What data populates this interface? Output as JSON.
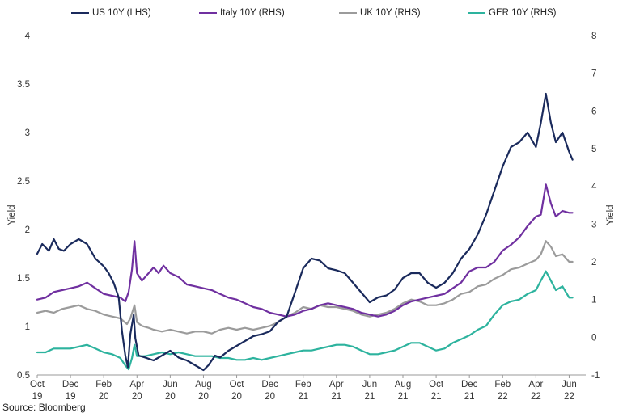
{
  "chart_data": {
    "type": "line",
    "title": "",
    "source": "Source: Bloomberg",
    "ylabel_left": "Yield",
    "ylabel_right": "Yield",
    "ylim_left": [
      0.5,
      4
    ],
    "ylim_right": [
      -1,
      8
    ],
    "yticks_left": [
      "0.5",
      "1",
      "1.5",
      "2",
      "2.5",
      "3",
      "3.5",
      "4"
    ],
    "yticks_right": [
      "-1",
      "0",
      "1",
      "2",
      "3",
      "4",
      "5",
      "6",
      "7",
      "8"
    ],
    "x_ticks": [
      {
        "month": "Oct",
        "year": "19"
      },
      {
        "month": "Dec",
        "year": "19"
      },
      {
        "month": "Feb",
        "year": "20"
      },
      {
        "month": "Apr",
        "year": "20"
      },
      {
        "month": "Jun",
        "year": "20"
      },
      {
        "month": "Aug",
        "year": "20"
      },
      {
        "month": "Oct",
        "year": "20"
      },
      {
        "month": "Dec",
        "year": "20"
      },
      {
        "month": "Feb",
        "year": "21"
      },
      {
        "month": "Apr",
        "year": "21"
      },
      {
        "month": "Jun",
        "year": "21"
      },
      {
        "month": "Aug",
        "year": "21"
      },
      {
        "month": "Oct",
        "year": "21"
      },
      {
        "month": "Dec",
        "year": "21"
      },
      {
        "month": "Feb",
        "year": "22"
      },
      {
        "month": "Apr",
        "year": "22"
      },
      {
        "month": "Jun",
        "year": "22"
      }
    ],
    "x_range_months": [
      0,
      33
    ],
    "series": [
      {
        "name": "US 10Y (LHS)",
        "axis": "left",
        "color": "#1a2a5c",
        "points": [
          [
            0,
            1.75
          ],
          [
            0.3,
            1.85
          ],
          [
            0.7,
            1.78
          ],
          [
            1.0,
            1.9
          ],
          [
            1.3,
            1.8
          ],
          [
            1.6,
            1.78
          ],
          [
            2.0,
            1.85
          ],
          [
            2.5,
            1.9
          ],
          [
            3.0,
            1.85
          ],
          [
            3.5,
            1.7
          ],
          [
            4.0,
            1.62
          ],
          [
            4.3,
            1.55
          ],
          [
            4.6,
            1.45
          ],
          [
            4.9,
            1.3
          ],
          [
            5.1,
            0.95
          ],
          [
            5.3,
            0.7
          ],
          [
            5.45,
            0.58
          ],
          [
            5.6,
            0.92
          ],
          [
            5.8,
            1.12
          ],
          [
            5.9,
            0.88
          ],
          [
            6.1,
            0.7
          ],
          [
            6.5,
            0.68
          ],
          [
            7.0,
            0.65
          ],
          [
            7.5,
            0.7
          ],
          [
            8.0,
            0.75
          ],
          [
            8.5,
            0.68
          ],
          [
            9.0,
            0.65
          ],
          [
            9.5,
            0.6
          ],
          [
            10.0,
            0.55
          ],
          [
            10.3,
            0.6
          ],
          [
            10.7,
            0.7
          ],
          [
            11.0,
            0.68
          ],
          [
            11.5,
            0.75
          ],
          [
            12.0,
            0.8
          ],
          [
            12.5,
            0.85
          ],
          [
            13.0,
            0.9
          ],
          [
            13.5,
            0.92
          ],
          [
            14.0,
            0.95
          ],
          [
            14.5,
            1.05
          ],
          [
            15.0,
            1.1
          ],
          [
            15.5,
            1.35
          ],
          [
            16.0,
            1.6
          ],
          [
            16.5,
            1.7
          ],
          [
            17.0,
            1.68
          ],
          [
            17.5,
            1.6
          ],
          [
            18.0,
            1.58
          ],
          [
            18.5,
            1.55
          ],
          [
            19.0,
            1.45
          ],
          [
            19.5,
            1.35
          ],
          [
            20.0,
            1.25
          ],
          [
            20.5,
            1.3
          ],
          [
            21.0,
            1.32
          ],
          [
            21.5,
            1.38
          ],
          [
            22.0,
            1.5
          ],
          [
            22.5,
            1.55
          ],
          [
            23.0,
            1.55
          ],
          [
            23.5,
            1.45
          ],
          [
            24.0,
            1.4
          ],
          [
            24.5,
            1.45
          ],
          [
            25.0,
            1.55
          ],
          [
            25.5,
            1.7
          ],
          [
            26.0,
            1.8
          ],
          [
            26.5,
            1.95
          ],
          [
            27.0,
            2.15
          ],
          [
            27.5,
            2.4
          ],
          [
            28.0,
            2.65
          ],
          [
            28.5,
            2.85
          ],
          [
            29.0,
            2.9
          ],
          [
            29.5,
            3.0
          ],
          [
            30.0,
            2.85
          ],
          [
            30.3,
            3.1
          ],
          [
            30.6,
            3.4
          ],
          [
            30.9,
            3.1
          ],
          [
            31.2,
            2.9
          ],
          [
            31.6,
            3.0
          ],
          [
            32.0,
            2.8
          ],
          [
            32.2,
            2.72
          ]
        ]
      },
      {
        "name": "Italy 10Y (RHS)",
        "axis": "right",
        "color": "#7030a0",
        "points": [
          [
            0,
            1.0
          ],
          [
            0.5,
            1.05
          ],
          [
            1.0,
            1.2
          ],
          [
            1.5,
            1.25
          ],
          [
            2.0,
            1.3
          ],
          [
            2.5,
            1.35
          ],
          [
            3.0,
            1.45
          ],
          [
            3.5,
            1.3
          ],
          [
            4.0,
            1.15
          ],
          [
            4.5,
            1.1
          ],
          [
            5.0,
            1.05
          ],
          [
            5.3,
            0.95
          ],
          [
            5.5,
            1.2
          ],
          [
            5.7,
            1.8
          ],
          [
            5.85,
            2.55
          ],
          [
            6.0,
            1.7
          ],
          [
            6.3,
            1.5
          ],
          [
            6.7,
            1.7
          ],
          [
            7.0,
            1.85
          ],
          [
            7.3,
            1.7
          ],
          [
            7.6,
            1.9
          ],
          [
            8.0,
            1.7
          ],
          [
            8.5,
            1.6
          ],
          [
            9.0,
            1.4
          ],
          [
            9.5,
            1.35
          ],
          [
            10.0,
            1.3
          ],
          [
            10.5,
            1.25
          ],
          [
            11.0,
            1.15
          ],
          [
            11.5,
            1.05
          ],
          [
            12.0,
            1.0
          ],
          [
            12.5,
            0.9
          ],
          [
            13.0,
            0.8
          ],
          [
            13.5,
            0.75
          ],
          [
            14.0,
            0.65
          ],
          [
            14.5,
            0.6
          ],
          [
            15.0,
            0.55
          ],
          [
            15.5,
            0.6
          ],
          [
            16.0,
            0.7
          ],
          [
            16.5,
            0.75
          ],
          [
            17.0,
            0.85
          ],
          [
            17.5,
            0.9
          ],
          [
            18.0,
            0.85
          ],
          [
            18.5,
            0.8
          ],
          [
            19.0,
            0.75
          ],
          [
            19.5,
            0.65
          ],
          [
            20.0,
            0.6
          ],
          [
            20.5,
            0.55
          ],
          [
            21.0,
            0.6
          ],
          [
            21.5,
            0.7
          ],
          [
            22.0,
            0.85
          ],
          [
            22.5,
            0.95
          ],
          [
            23.0,
            1.0
          ],
          [
            23.5,
            1.05
          ],
          [
            24.0,
            1.1
          ],
          [
            24.5,
            1.15
          ],
          [
            25.0,
            1.3
          ],
          [
            25.5,
            1.45
          ],
          [
            26.0,
            1.75
          ],
          [
            26.5,
            1.85
          ],
          [
            27.0,
            1.85
          ],
          [
            27.5,
            2.0
          ],
          [
            28.0,
            2.3
          ],
          [
            28.5,
            2.45
          ],
          [
            29.0,
            2.65
          ],
          [
            29.5,
            2.95
          ],
          [
            30.0,
            3.2
          ],
          [
            30.3,
            3.25
          ],
          [
            30.6,
            4.05
          ],
          [
            30.9,
            3.55
          ],
          [
            31.2,
            3.2
          ],
          [
            31.6,
            3.35
          ],
          [
            32.0,
            3.3
          ],
          [
            32.2,
            3.3
          ]
        ]
      },
      {
        "name": "UK 10Y (RHS)",
        "axis": "right",
        "color": "#9b9b9b",
        "points": [
          [
            0,
            0.65
          ],
          [
            0.5,
            0.7
          ],
          [
            1.0,
            0.65
          ],
          [
            1.5,
            0.75
          ],
          [
            2.0,
            0.8
          ],
          [
            2.5,
            0.85
          ],
          [
            3.0,
            0.75
          ],
          [
            3.5,
            0.7
          ],
          [
            4.0,
            0.6
          ],
          [
            4.5,
            0.55
          ],
          [
            5.0,
            0.5
          ],
          [
            5.4,
            0.35
          ],
          [
            5.6,
            0.5
          ],
          [
            5.85,
            0.85
          ],
          [
            6.0,
            0.4
          ],
          [
            6.3,
            0.3
          ],
          [
            6.7,
            0.25
          ],
          [
            7.0,
            0.2
          ],
          [
            7.5,
            0.15
          ],
          [
            8.0,
            0.2
          ],
          [
            8.5,
            0.15
          ],
          [
            9.0,
            0.1
          ],
          [
            9.5,
            0.15
          ],
          [
            10.0,
            0.15
          ],
          [
            10.5,
            0.1
          ],
          [
            11.0,
            0.2
          ],
          [
            11.5,
            0.25
          ],
          [
            12.0,
            0.2
          ],
          [
            12.5,
            0.25
          ],
          [
            13.0,
            0.2
          ],
          [
            13.5,
            0.25
          ],
          [
            14.0,
            0.3
          ],
          [
            14.5,
            0.4
          ],
          [
            15.0,
            0.55
          ],
          [
            15.5,
            0.65
          ],
          [
            16.0,
            0.8
          ],
          [
            16.5,
            0.75
          ],
          [
            17.0,
            0.85
          ],
          [
            17.5,
            0.8
          ],
          [
            18.0,
            0.8
          ],
          [
            18.5,
            0.75
          ],
          [
            19.0,
            0.7
          ],
          [
            19.5,
            0.6
          ],
          [
            20.0,
            0.55
          ],
          [
            20.5,
            0.6
          ],
          [
            21.0,
            0.65
          ],
          [
            21.5,
            0.75
          ],
          [
            22.0,
            0.9
          ],
          [
            22.5,
            1.0
          ],
          [
            23.0,
            0.95
          ],
          [
            23.5,
            0.85
          ],
          [
            24.0,
            0.85
          ],
          [
            24.5,
            0.9
          ],
          [
            25.0,
            1.0
          ],
          [
            25.5,
            1.15
          ],
          [
            26.0,
            1.2
          ],
          [
            26.5,
            1.35
          ],
          [
            27.0,
            1.4
          ],
          [
            27.5,
            1.55
          ],
          [
            28.0,
            1.65
          ],
          [
            28.5,
            1.8
          ],
          [
            29.0,
            1.85
          ],
          [
            29.5,
            1.95
          ],
          [
            30.0,
            2.05
          ],
          [
            30.3,
            2.2
          ],
          [
            30.6,
            2.55
          ],
          [
            30.9,
            2.4
          ],
          [
            31.2,
            2.15
          ],
          [
            31.6,
            2.2
          ],
          [
            32.0,
            2.0
          ],
          [
            32.2,
            2.0
          ]
        ]
      },
      {
        "name": "GER 10Y (RHS)",
        "axis": "right",
        "color": "#2db39e",
        "points": [
          [
            0,
            -0.4
          ],
          [
            0.5,
            -0.4
          ],
          [
            1.0,
            -0.3
          ],
          [
            1.5,
            -0.3
          ],
          [
            2.0,
            -0.3
          ],
          [
            2.5,
            -0.25
          ],
          [
            3.0,
            -0.2
          ],
          [
            3.5,
            -0.3
          ],
          [
            4.0,
            -0.4
          ],
          [
            4.5,
            -0.45
          ],
          [
            5.0,
            -0.55
          ],
          [
            5.3,
            -0.75
          ],
          [
            5.5,
            -0.85
          ],
          [
            5.7,
            -0.55
          ],
          [
            5.85,
            -0.2
          ],
          [
            6.0,
            -0.5
          ],
          [
            6.5,
            -0.5
          ],
          [
            7.0,
            -0.45
          ],
          [
            7.5,
            -0.4
          ],
          [
            8.0,
            -0.45
          ],
          [
            8.5,
            -0.4
          ],
          [
            9.0,
            -0.45
          ],
          [
            9.5,
            -0.5
          ],
          [
            10.0,
            -0.5
          ],
          [
            10.5,
            -0.5
          ],
          [
            11.0,
            -0.55
          ],
          [
            11.5,
            -0.55
          ],
          [
            12.0,
            -0.6
          ],
          [
            12.5,
            -0.6
          ],
          [
            13.0,
            -0.55
          ],
          [
            13.5,
            -0.6
          ],
          [
            14.0,
            -0.55
          ],
          [
            14.5,
            -0.5
          ],
          [
            15.0,
            -0.45
          ],
          [
            15.5,
            -0.4
          ],
          [
            16.0,
            -0.35
          ],
          [
            16.5,
            -0.35
          ],
          [
            17.0,
            -0.3
          ],
          [
            17.5,
            -0.25
          ],
          [
            18.0,
            -0.2
          ],
          [
            18.5,
            -0.2
          ],
          [
            19.0,
            -0.25
          ],
          [
            19.5,
            -0.35
          ],
          [
            20.0,
            -0.45
          ],
          [
            20.5,
            -0.45
          ],
          [
            21.0,
            -0.4
          ],
          [
            21.5,
            -0.35
          ],
          [
            22.0,
            -0.25
          ],
          [
            22.5,
            -0.15
          ],
          [
            23.0,
            -0.15
          ],
          [
            23.5,
            -0.25
          ],
          [
            24.0,
            -0.35
          ],
          [
            24.5,
            -0.3
          ],
          [
            25.0,
            -0.15
          ],
          [
            25.5,
            -0.05
          ],
          [
            26.0,
            0.05
          ],
          [
            26.5,
            0.2
          ],
          [
            27.0,
            0.3
          ],
          [
            27.5,
            0.6
          ],
          [
            28.0,
            0.85
          ],
          [
            28.5,
            0.95
          ],
          [
            29.0,
            1.0
          ],
          [
            29.5,
            1.15
          ],
          [
            30.0,
            1.25
          ],
          [
            30.3,
            1.5
          ],
          [
            30.6,
            1.75
          ],
          [
            30.9,
            1.5
          ],
          [
            31.2,
            1.25
          ],
          [
            31.6,
            1.35
          ],
          [
            32.0,
            1.05
          ],
          [
            32.2,
            1.05
          ]
        ]
      }
    ]
  }
}
